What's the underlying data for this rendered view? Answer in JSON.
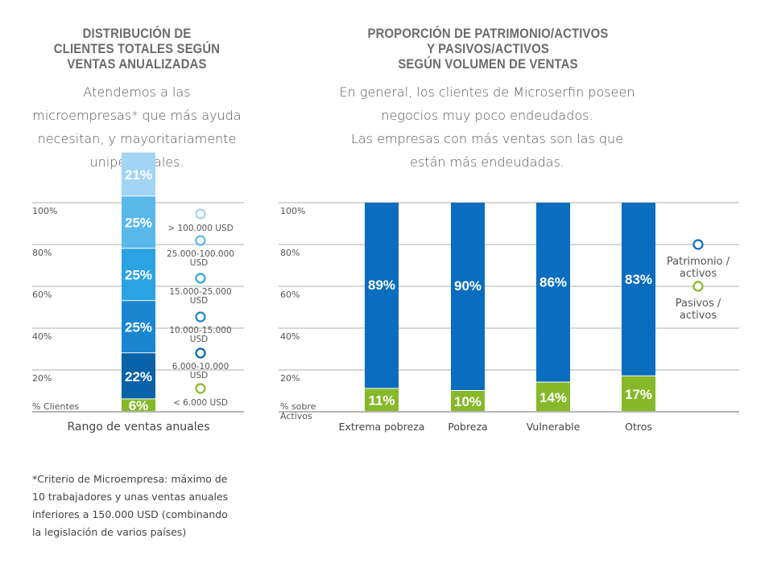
{
  "left": {
    "title": [
      "DISTRIBUCIÓN DE",
      "CLIENTES TOTALES SEGÚN",
      "VENTAS ANUALIZADAS"
    ],
    "subtitle": [
      "Atendemos a las",
      "microempresas* que más ayuda",
      "necesitan, y mayoritariamente",
      "unipersonales."
    ]
  },
  "right": {
    "title": [
      "PROPORCIÓN DE PATRIMONIO/ACTIVOS",
      "Y PASIVOS/ACTIVOS",
      "SEGÚN VOLUMEN DE VENTAS"
    ],
    "subtitle": [
      "En general, los clientes de Microserfin poseen",
      "negocios muy poco endeudados.",
      "Las empresas con más ventas son las que",
      "están más endeudadas."
    ]
  },
  "footnote": [
    "*Criterio de Microempresa: máximo de",
    "10 trabajadores y unas ventas anuales",
    "inferiores a 150.000 USD (combinando",
    "la legislación de varios países)"
  ],
  "chart_data": [
    {
      "type": "bar",
      "stacked": true,
      "xlabel": "Rango de ventas anuales",
      "ylabel": "% Clientes",
      "yticks": [
        "20%",
        "40%",
        "60%",
        "80%",
        "100%"
      ],
      "ylim": [
        0,
        100
      ],
      "series": [
        {
          "name": "< 6.000 USD",
          "value": 6,
          "label": "6%",
          "color": "#86b829"
        },
        {
          "name": "6.000-10.000 USD",
          "value": 22,
          "label": "22%",
          "color": "#0a62a8"
        },
        {
          "name": "10.000-15.000 USD",
          "value": 25,
          "label": "25%",
          "color": "#1a86d0"
        },
        {
          "name": "15.000-25.000 USD",
          "value": 25,
          "label": "25%",
          "color": "#2ba3e2"
        },
        {
          "name": "25.000-100.000 USD",
          "value": 25,
          "label": "25%",
          "color": "#59b8ea"
        },
        {
          "name": "> 100.000 USD",
          "value": 21,
          "label": "21%",
          "color": "#a2d5f3"
        }
      ],
      "legend": [
        {
          "name": "> 100.000 USD",
          "color": "#a2d5f3"
        },
        {
          "name": "25.000-100.000 USD",
          "color": "#59b8ea"
        },
        {
          "name": "15.000-25.000 USD",
          "color": "#2ba3e2"
        },
        {
          "name": "10.000-15.000 USD",
          "color": "#1a86d0"
        },
        {
          "name": "6.000-10.000 USD",
          "color": "#0a62a8"
        },
        {
          "name": "< 6.000 USD",
          "color": "#86b829"
        }
      ]
    },
    {
      "type": "bar",
      "stacked": true,
      "ylabel": "% sobre Activos",
      "yticks": [
        "20%",
        "40%",
        "60%",
        "80%",
        "100%"
      ],
      "ylim": [
        0,
        100
      ],
      "categories": [
        "Extrema pobreza",
        "Pobreza",
        "Vulnerable",
        "Otros"
      ],
      "series": [
        {
          "name": "Pasivos / activos",
          "values": [
            11,
            10,
            14,
            17
          ],
          "labels": [
            "11%",
            "10%",
            "14%",
            "17%"
          ],
          "color": "#86b829"
        },
        {
          "name": "Patrimonio / activos",
          "values": [
            89,
            90,
            86,
            83
          ],
          "labels": [
            "89%",
            "90%",
            "86%",
            "83%"
          ],
          "color": "#0a6dbd"
        }
      ],
      "legend": [
        {
          "name": "Patrimonio / activos",
          "color": "#0a6dbd"
        },
        {
          "name": "Pasivos / activos",
          "color": "#86b829"
        }
      ]
    }
  ]
}
